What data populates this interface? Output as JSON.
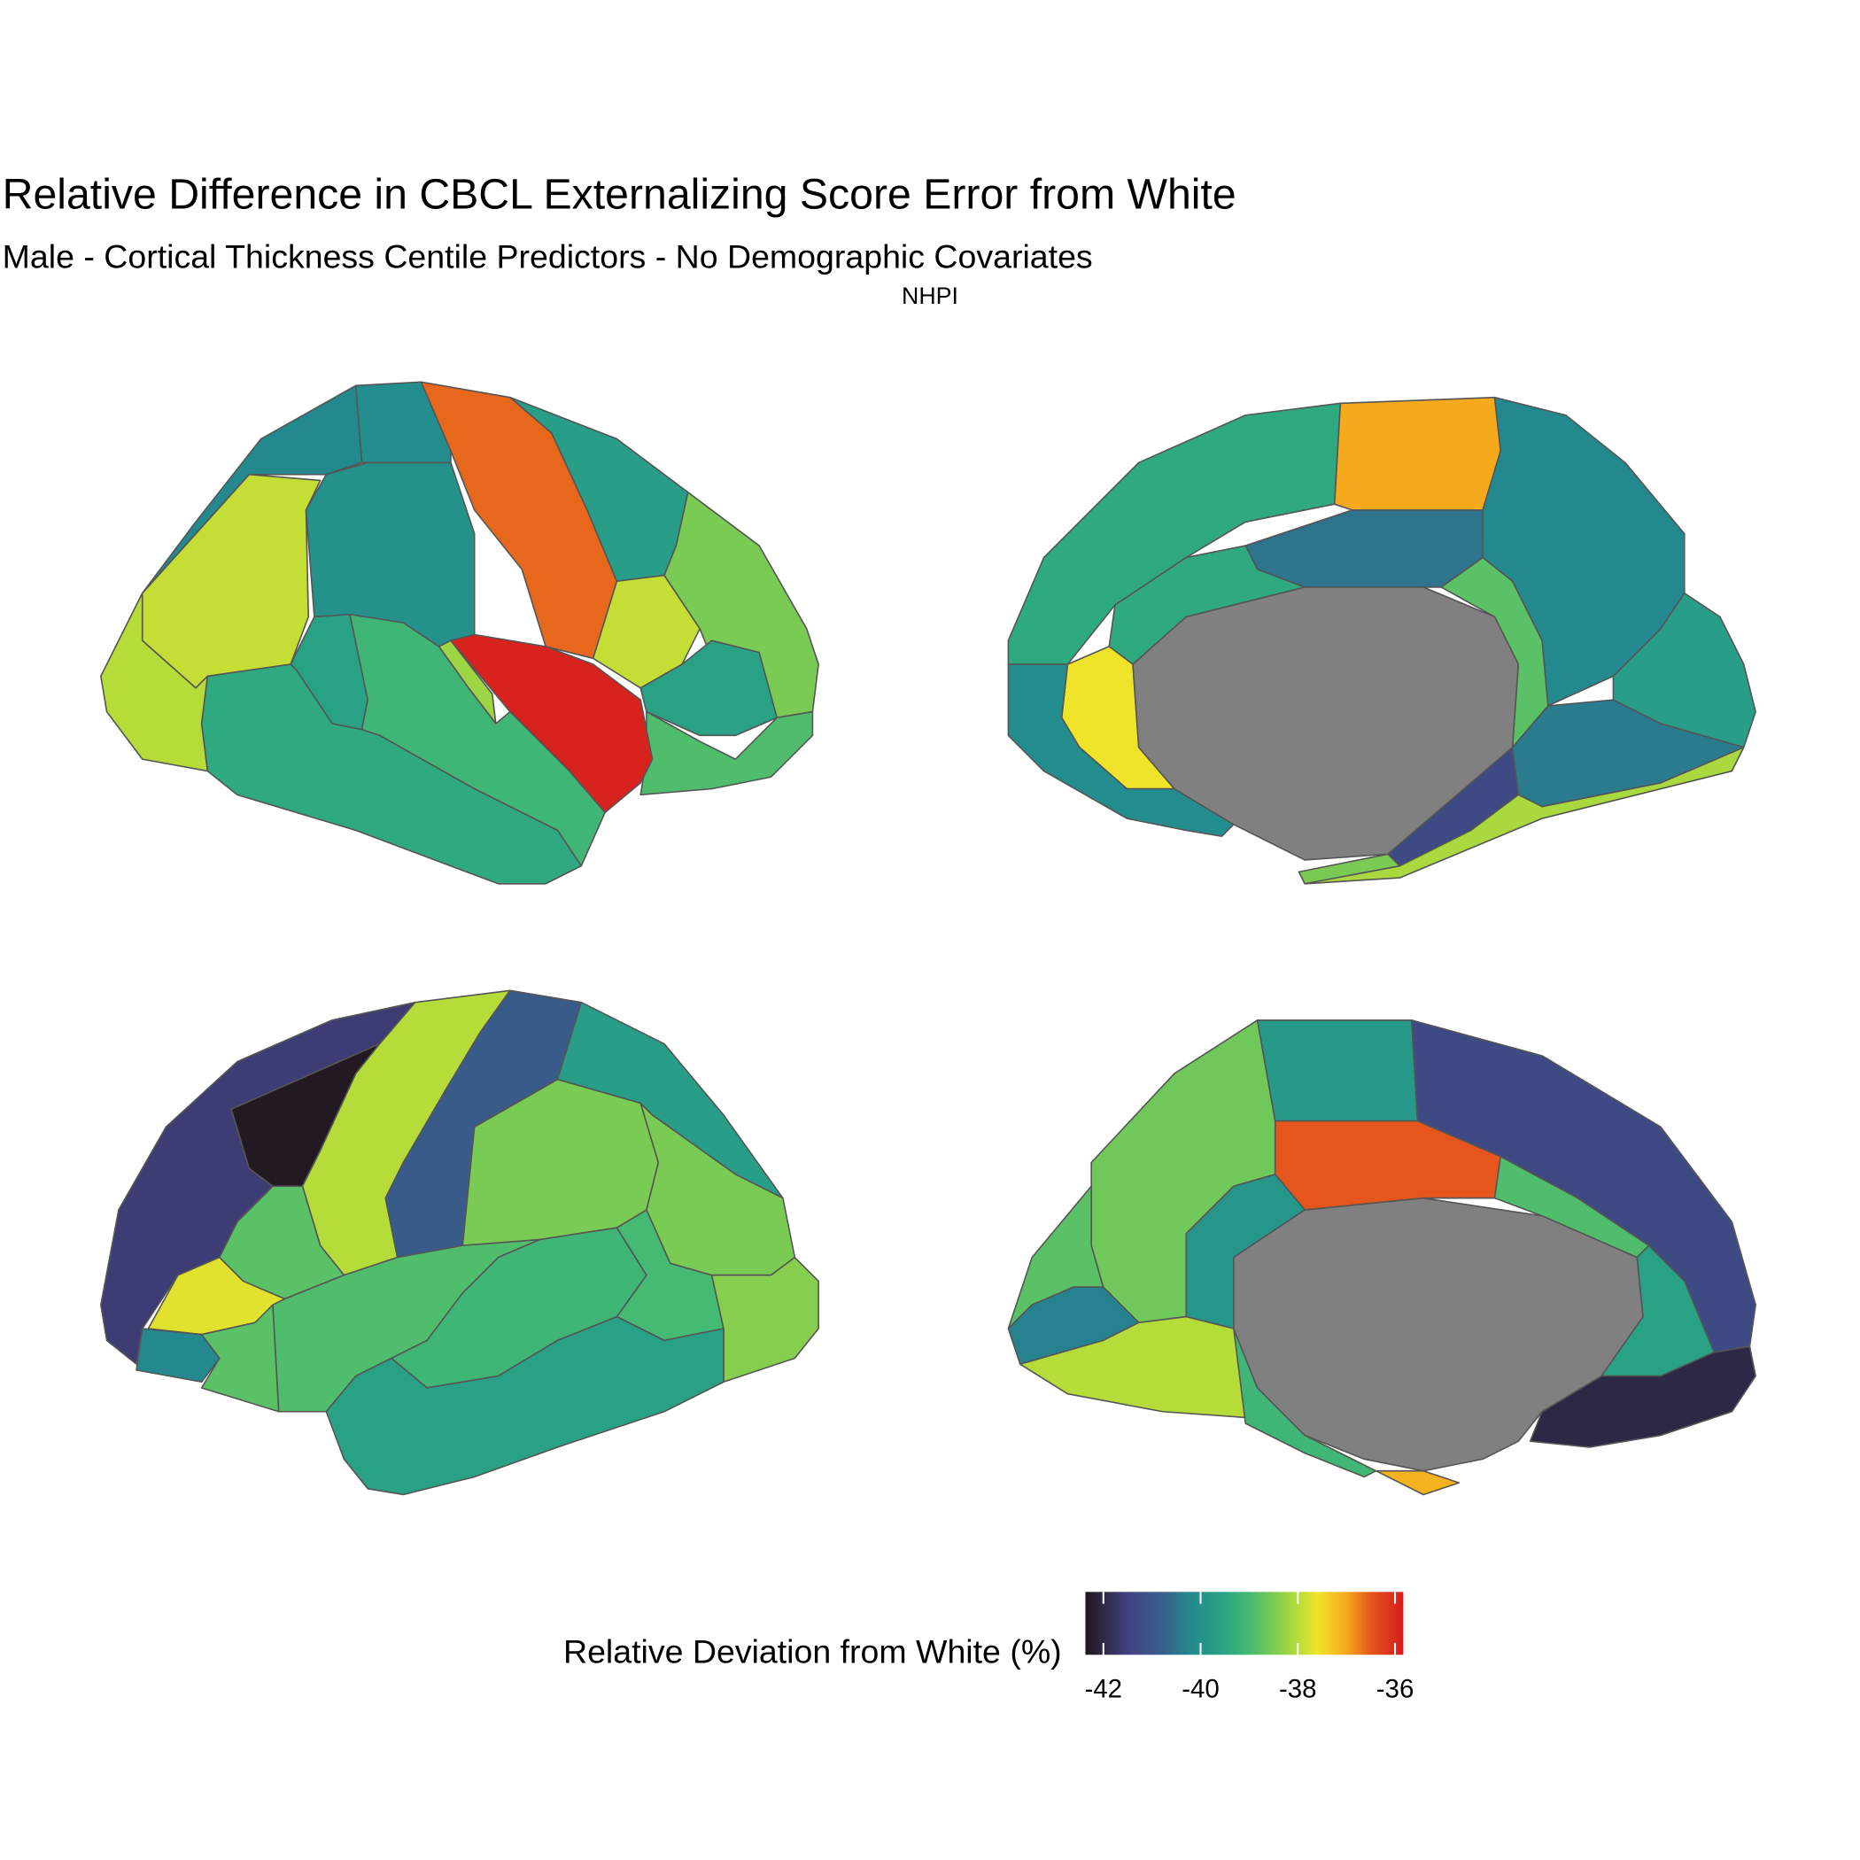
{
  "chart_data": {
    "type": "brain",
    "title": "Relative Difference in CBCL Externalizing Score Error from White",
    "subtitle": "Male - Cortical Thickness Centile Predictors - No Demographic Covariates",
    "facet": "NHPI",
    "legend_title": "Relative Deviation from White (%)",
    "colorbar_lim": [
      -42.37,
      -35.83
    ],
    "colorbar_ticks": [
      -42,
      -40,
      -38,
      -36
    ],
    "colorscale": [
      [
        -42.37,
        "#1f161b"
      ],
      [
        -41.5,
        "#41417f"
      ],
      [
        -40.8,
        "#385f8c"
      ],
      [
        -40.2,
        "#23898e"
      ],
      [
        -39.5,
        "#2aa584"
      ],
      [
        -39,
        "#45ba72"
      ],
      [
        -38.5,
        "#7acb53"
      ],
      [
        -38,
        "#b6dc3a"
      ],
      [
        -37.6,
        "#f0e42a"
      ],
      [
        -37,
        "#f5a91d"
      ],
      [
        -36.5,
        "#e4561c"
      ],
      [
        -35.83,
        "#d51c1d"
      ]
    ],
    "views": [
      {
        "values": [
          -37.9,
          -38,
          -40.2,
          -40.1,
          -40,
          -36.6,
          -39.7,
          -37.9,
          -38.5,
          -39.6,
          -38.9,
          -35.9,
          -38.2,
          -39.6,
          -39.1,
          -39.4
        ]
      },
      {
        "values": [
          -39.4,
          -37,
          -40.2,
          -39.7,
          -40.4,
          -40.5,
          -38.8,
          -39.4,
          -37.6,
          -40.1,
          -41.3,
          -38.1,
          -38.5
        ]
      },
      {
        "values": [
          -41.6,
          -42.3,
          -38,
          -40.9,
          -39.7,
          -38.5,
          -38.5,
          -38.8,
          -37.7,
          -40.2,
          -38.8,
          -38.9,
          -39.1,
          -39,
          -38.4,
          -39.6
        ]
      },
      {
        "values": [
          -38.6,
          -39.8,
          -41.3,
          -36.5,
          -38.9,
          -39.6,
          -42,
          -39.9,
          -38.8,
          -40.3,
          -38,
          -39.1,
          -37.1
        ]
      }
    ]
  }
}
